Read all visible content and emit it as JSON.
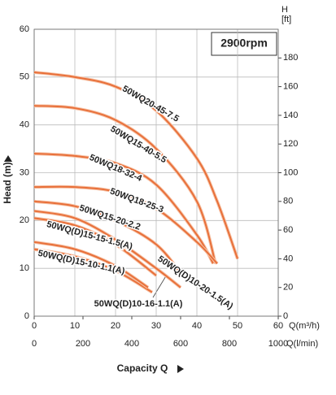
{
  "chart_data": {
    "type": "line",
    "annotation": "2900rpm",
    "xlabel": "Capacity Q",
    "ylabel": "Head (m)",
    "y2label_top": "H",
    "y2label": "[ft]",
    "xunit": "Q(m³/h)",
    "x2unit": "Q(l/min)",
    "xlim": [
      0,
      60
    ],
    "xticks": [
      0,
      10,
      20,
      30,
      40,
      50,
      60
    ],
    "x2lim": [
      0,
      1000
    ],
    "x2ticks": [
      0,
      200,
      400,
      600,
      800,
      1000
    ],
    "ylim": [
      0,
      60
    ],
    "yticks": [
      0,
      10,
      20,
      30,
      40,
      50,
      60
    ],
    "y2lim": [
      0,
      200
    ],
    "y2ticks": [
      0,
      20,
      40,
      60,
      80,
      100,
      120,
      140,
      160,
      180
    ],
    "grid": true,
    "color": "#e8703a",
    "series": [
      {
        "name": "50WQ20-45-7.5",
        "x": [
          0,
          10,
          20,
          30,
          40,
          45,
          50
        ],
        "values": [
          51,
          50,
          48,
          43,
          33,
          24,
          12
        ]
      },
      {
        "name": "50WQ15-40-5.5",
        "x": [
          0,
          10,
          20,
          30,
          40,
          44.6
        ],
        "values": [
          44,
          43.5,
          41,
          35,
          24,
          11
        ]
      },
      {
        "name": "50WQ18-32-4",
        "x": [
          0,
          10,
          20,
          30,
          40,
          44
        ],
        "values": [
          34,
          33.5,
          32,
          27.5,
          17,
          11
        ]
      },
      {
        "name": "50WQ18-25-3",
        "x": [
          0,
          10,
          20,
          30,
          40,
          45
        ],
        "values": [
          27,
          27,
          26,
          22.5,
          15.5,
          11
        ]
      },
      {
        "name": "50WQ15-20-2.2",
        "x": [
          0,
          10,
          20,
          30,
          36
        ],
        "values": [
          24,
          23,
          20,
          15,
          9
        ]
      },
      {
        "name": "50WQ(D)15-15-1.5(A)",
        "x": [
          0,
          10,
          20,
          30
        ],
        "values": [
          20.5,
          19,
          15,
          8.5
        ]
      },
      {
        "name": "50WQ(D)10-20-1.5(A)",
        "x": [
          0,
          10,
          20,
          30,
          36
        ],
        "values": [
          22,
          20.5,
          16,
          10,
          6
        ]
      },
      {
        "name": "50WQ(D)15-10-1.1(A)",
        "x": [
          0,
          10,
          20,
          29
        ],
        "values": [
          14,
          12.5,
          9.5,
          5
        ]
      },
      {
        "name": "50WQ(D)10-16-1.1(A)",
        "x": [
          0,
          10,
          20,
          28
        ],
        "values": [
          15.5,
          14,
          10.5,
          6
        ]
      }
    ]
  }
}
